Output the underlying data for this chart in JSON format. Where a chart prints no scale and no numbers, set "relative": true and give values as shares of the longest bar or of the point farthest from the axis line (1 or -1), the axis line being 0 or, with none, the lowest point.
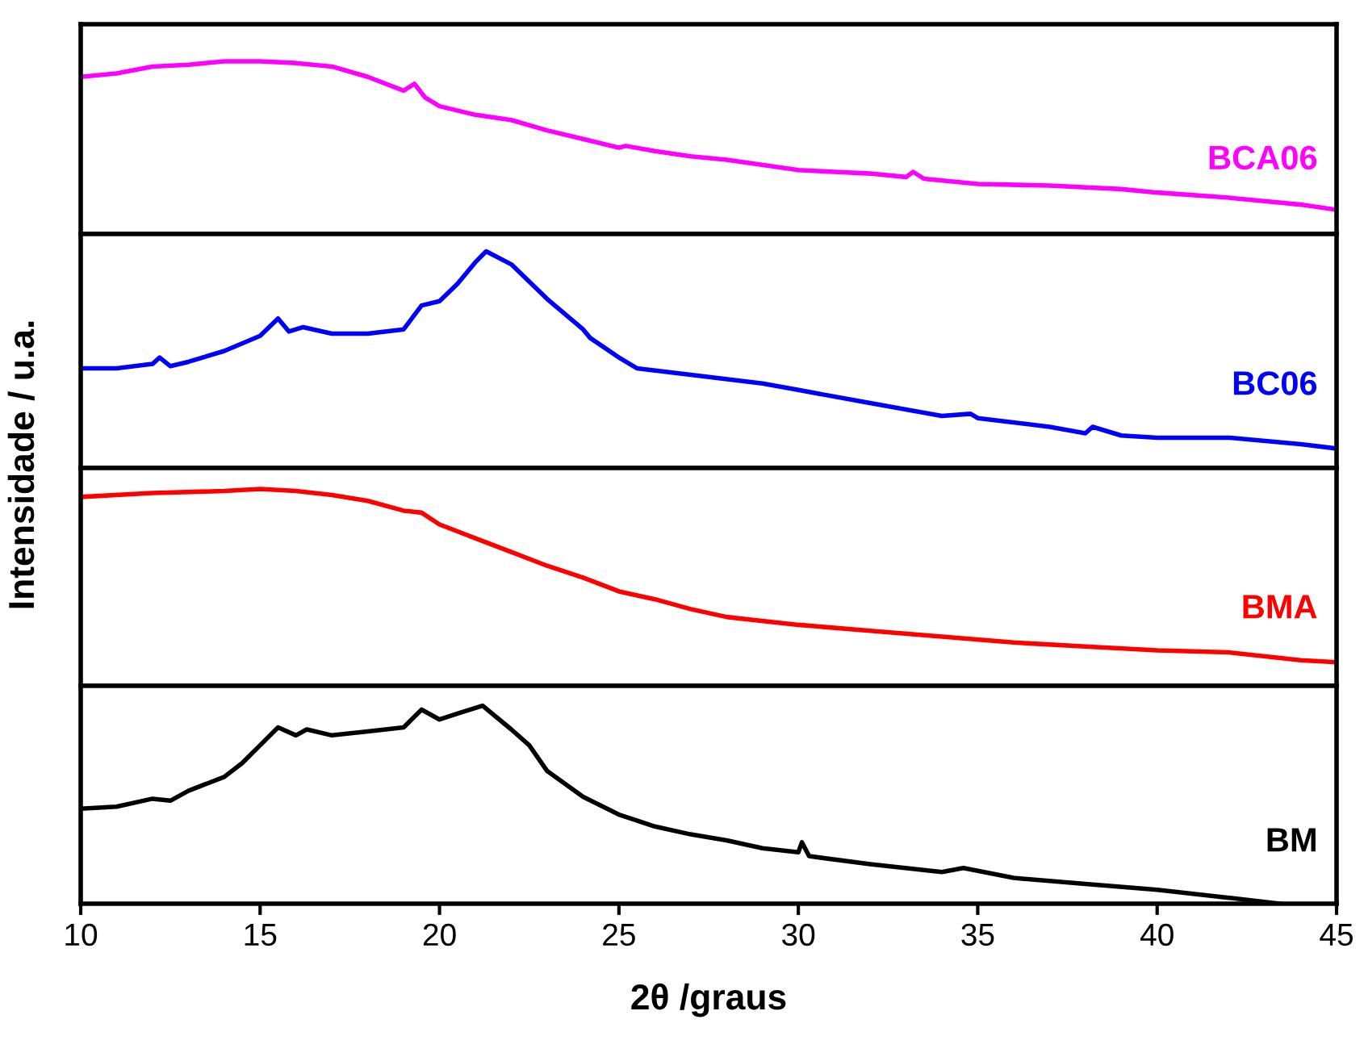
{
  "chart_data": [
    {
      "type": "line",
      "relative": true,
      "ylabel": "Intensidade / u.a.",
      "xlim": [
        10,
        45
      ],
      "xticks": [
        10,
        15,
        20,
        25,
        30,
        35,
        40,
        45
      ],
      "tick_labels": false,
      "x": [
        10,
        11,
        12,
        13,
        14,
        15,
        16,
        17,
        18,
        19,
        19.3,
        19.6,
        20,
        21,
        22,
        23,
        24,
        25,
        25.2,
        26,
        27,
        28,
        30,
        31,
        32,
        33,
        33.2,
        33.5,
        35,
        37,
        39,
        40,
        42,
        44,
        45
      ],
      "series": [
        {
          "name": "BCA06",
          "color": "#ff00ff",
          "values": [
            0.91,
            0.93,
            0.97,
            0.98,
            1.0,
            1.0,
            0.99,
            0.97,
            0.91,
            0.83,
            0.87,
            0.79,
            0.74,
            0.69,
            0.66,
            0.6,
            0.55,
            0.5,
            0.51,
            0.48,
            0.45,
            0.43,
            0.37,
            0.36,
            0.35,
            0.33,
            0.36,
            0.32,
            0.29,
            0.28,
            0.26,
            0.24,
            0.21,
            0.17,
            0.14
          ]
        }
      ]
    },
    {
      "type": "line",
      "relative": true,
      "xlim": [
        10,
        45
      ],
      "xticks": [
        10,
        15,
        20,
        25,
        30,
        35,
        40,
        45
      ],
      "tick_labels": false,
      "x": [
        10,
        11,
        12,
        12.2,
        12.5,
        13,
        14,
        15,
        15.5,
        15.8,
        16.2,
        17,
        18,
        19,
        19.5,
        20,
        20.5,
        21,
        21.3,
        22,
        23,
        24,
        24.2,
        25,
        25.5,
        27,
        29,
        30,
        32,
        34,
        34.8,
        35,
        37,
        38,
        38.2,
        39,
        40,
        42,
        44,
        45
      ],
      "series": [
        {
          "name": "BC06",
          "color": "#0000ff",
          "values": [
            0.46,
            0.46,
            0.48,
            0.51,
            0.47,
            0.49,
            0.54,
            0.61,
            0.69,
            0.63,
            0.65,
            0.62,
            0.62,
            0.64,
            0.75,
            0.77,
            0.85,
            0.95,
            1.0,
            0.94,
            0.78,
            0.64,
            0.6,
            0.51,
            0.46,
            0.43,
            0.39,
            0.36,
            0.3,
            0.24,
            0.25,
            0.23,
            0.19,
            0.16,
            0.19,
            0.15,
            0.14,
            0.14,
            0.11,
            0.09
          ]
        }
      ]
    },
    {
      "type": "line",
      "relative": true,
      "xlim": [
        10,
        45
      ],
      "xticks": [
        10,
        15,
        20,
        25,
        30,
        35,
        40,
        45
      ],
      "tick_labels": false,
      "x": [
        10,
        12,
        14,
        15,
        16,
        17,
        18,
        19,
        19.5,
        20,
        21,
        22,
        23,
        24,
        25,
        26,
        27,
        28,
        30,
        32,
        34,
        36,
        38,
        40,
        42,
        44,
        45
      ],
      "series": [
        {
          "name": "BMA",
          "color": "#ff0000",
          "values": [
            0.96,
            0.98,
            0.99,
            1.0,
            0.99,
            0.97,
            0.94,
            0.89,
            0.88,
            0.82,
            0.75,
            0.68,
            0.61,
            0.55,
            0.48,
            0.44,
            0.39,
            0.35,
            0.31,
            0.28,
            0.25,
            0.22,
            0.2,
            0.18,
            0.17,
            0.13,
            0.12
          ]
        }
      ]
    },
    {
      "type": "line",
      "relative": true,
      "xlabel": "2θ /graus",
      "xlim": [
        10,
        45
      ],
      "xticks": [
        10,
        15,
        20,
        25,
        30,
        35,
        40,
        45
      ],
      "tick_labels": "x",
      "x": [
        10,
        11,
        12,
        12.5,
        13,
        14,
        14.5,
        15,
        15.5,
        16,
        16.3,
        17,
        18,
        19,
        19.5,
        20,
        20.5,
        21.2,
        22,
        22.5,
        23,
        24,
        25,
        26,
        27,
        28,
        29,
        30,
        30.1,
        30.3,
        32,
        34,
        34.6,
        36,
        38,
        40,
        42,
        43.4
      ],
      "series": [
        {
          "name": "BM",
          "color": "#000000",
          "values": [
            0.48,
            0.49,
            0.53,
            0.52,
            0.57,
            0.64,
            0.71,
            0.8,
            0.89,
            0.85,
            0.88,
            0.85,
            0.87,
            0.89,
            0.98,
            0.93,
            0.96,
            1.0,
            0.88,
            0.8,
            0.67,
            0.54,
            0.45,
            0.39,
            0.35,
            0.32,
            0.28,
            0.26,
            0.31,
            0.24,
            0.2,
            0.16,
            0.18,
            0.13,
            0.1,
            0.07,
            0.03,
            0
          ]
        }
      ]
    }
  ]
}
